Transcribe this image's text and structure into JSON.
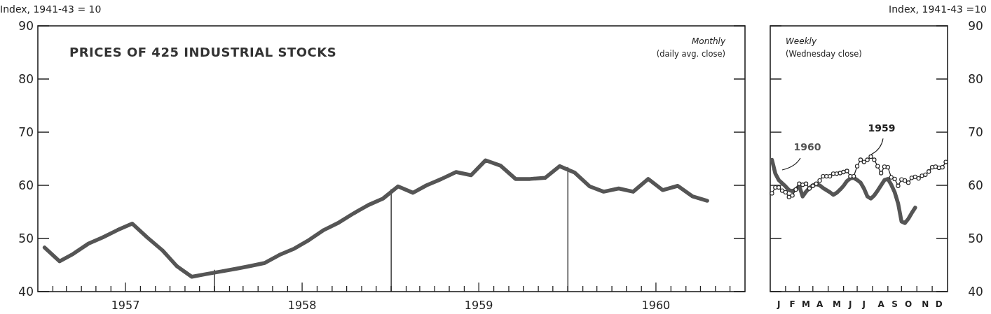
{
  "chart_data": [
    {
      "type": "line",
      "title": "PRICES OF 425 INDUSTRIAL STOCKS",
      "ylabel": "Index, 1941-43 = 10",
      "annotations": [
        "Monthly",
        "(daily avg. close)"
      ],
      "x": [
        "1957-01-15",
        "1957-02-15",
        "1957-03-15",
        "1957-04-15",
        "1957-05-15",
        "1957-06-15",
        "1957-07-15",
        "1957-08-15",
        "1957-09-15",
        "1957-10-15",
        "1957-11-15",
        "1957-12-15",
        "1958-01-15",
        "1958-02-15",
        "1958-03-15",
        "1958-04-15",
        "1958-05-15",
        "1958-06-15",
        "1958-07-15",
        "1958-08-15",
        "1958-09-15",
        "1958-10-15",
        "1958-11-15",
        "1958-12-15",
        "1959-01-15",
        "1959-02-15",
        "1959-03-15",
        "1959-04-15",
        "1959-05-15",
        "1959-06-15",
        "1959-07-15",
        "1959-08-15",
        "1959-09-15",
        "1959-10-15",
        "1959-11-15",
        "1959-12-15",
        "1960-01-15",
        "1960-02-15",
        "1960-03-15",
        "1960-04-15",
        "1960-05-15",
        "1960-06-15",
        "1960-07-15",
        "1960-08-15",
        "1960-09-15",
        "1960-10-15"
      ],
      "series": [
        {
          "color": "#555555",
          "values": [
            48.3,
            45.7,
            47.1,
            49.0,
            50.2,
            51.6,
            52.8,
            50.2,
            47.8,
            44.8,
            42.8,
            43.3,
            43.8,
            44.3,
            44.8,
            45.4,
            46.9,
            48.1,
            49.7,
            51.6,
            53.0,
            54.7,
            56.3,
            57.5,
            59.8,
            58.6,
            60.0,
            61.2,
            62.5,
            61.9,
            64.7,
            63.7,
            61.2,
            61.2,
            61.4,
            63.6,
            62.4,
            59.8,
            58.8,
            59.4,
            58.8,
            61.2,
            59.1,
            59.9,
            57.9,
            57.1
          ]
        }
      ],
      "xlim": [
        "1957-01-01",
        "1961-01-01"
      ],
      "xticks": [
        {
          "value": "1957-02-01",
          "label": null
        },
        {
          "value": "1957-03-01",
          "label": null
        },
        {
          "value": "1957-04-01",
          "label": null
        },
        {
          "value": "1957-05-01",
          "label": null
        },
        {
          "value": "1957-06-01",
          "label": null
        },
        {
          "value": "1957-07-01",
          "label": "1957"
        },
        {
          "value": "1957-08-01",
          "label": null
        },
        {
          "value": "1957-09-01",
          "label": null
        },
        {
          "value": "1957-10-01",
          "label": null
        },
        {
          "value": "1957-11-01",
          "label": null
        },
        {
          "value": "1957-12-01",
          "label": null
        },
        {
          "value": "1958-01-01",
          "label": null
        },
        {
          "value": "1958-02-01",
          "label": null
        },
        {
          "value": "1958-03-01",
          "label": null
        },
        {
          "value": "1958-04-01",
          "label": null
        },
        {
          "value": "1958-05-01",
          "label": null
        },
        {
          "value": "1958-06-01",
          "label": null
        },
        {
          "value": "1958-07-01",
          "label": "1958"
        },
        {
          "value": "1958-08-01",
          "label": null
        },
        {
          "value": "1958-09-01",
          "label": null
        },
        {
          "value": "1958-10-01",
          "label": null
        },
        {
          "value": "1958-11-01",
          "label": null
        },
        {
          "value": "1958-12-01",
          "label": null
        },
        {
          "value": "1959-01-01",
          "label": null
        },
        {
          "value": "1959-02-01",
          "label": null
        },
        {
          "value": "1959-03-01",
          "label": null
        },
        {
          "value": "1959-04-01",
          "label": null
        },
        {
          "value": "1959-05-01",
          "label": null
        },
        {
          "value": "1959-06-01",
          "label": null
        },
        {
          "value": "1959-07-01",
          "label": "1959"
        },
        {
          "value": "1959-08-01",
          "label": null
        },
        {
          "value": "1959-09-01",
          "label": null
        },
        {
          "value": "1959-10-01",
          "label": null
        },
        {
          "value": "1959-11-01",
          "label": null
        },
        {
          "value": "1959-12-01",
          "label": null
        },
        {
          "value": "1960-01-01",
          "label": null
        },
        {
          "value": "1960-02-01",
          "label": null
        },
        {
          "value": "1960-03-01",
          "label": null
        },
        {
          "value": "1960-04-01",
          "label": null
        },
        {
          "value": "1960-05-01",
          "label": null
        },
        {
          "value": "1960-06-01",
          "label": null
        },
        {
          "value": "1960-07-01",
          "label": "1960"
        },
        {
          "value": "1960-08-01",
          "label": null
        },
        {
          "value": "1960-09-01",
          "label": null
        },
        {
          "value": "1960-10-01",
          "label": null
        },
        {
          "value": "1960-11-01",
          "label": null
        },
        {
          "value": "1960-12-01",
          "label": null
        }
      ],
      "ylim": [
        40,
        90
      ],
      "yticks": [
        40,
        50,
        60,
        70,
        80,
        90
      ],
      "ref_lines": [
        {
          "axis": "x",
          "value": "1958-01-01",
          "color": "#222222"
        },
        {
          "axis": "x",
          "value": "1959-01-01",
          "color": "#222222"
        },
        {
          "axis": "x",
          "value": "1960-01-01",
          "color": "#222222"
        }
      ],
      "line_style": "solid",
      "marker": "none"
    },
    {
      "type": "line",
      "y2label": "Index, 1941-43 =10",
      "annotations": [
        "Weekly",
        "(Wednesday close)"
      ],
      "categories": [
        null,
        null,
        "J",
        null,
        null,
        null,
        "F",
        null,
        null,
        null,
        "M",
        null,
        null,
        null,
        "A",
        null,
        null,
        null,
        null,
        "M",
        null,
        null,
        null,
        "J",
        null,
        null,
        null,
        "J",
        null,
        null,
        null,
        null,
        "A",
        null,
        null,
        null,
        "S",
        null,
        null,
        null,
        "O",
        null,
        null,
        null,
        null,
        "N",
        null,
        null,
        null,
        "D",
        null,
        null
      ],
      "series": [
        {
          "name": "1960",
          "color": "#555555",
          "axis": "y2",
          "marker": "none",
          "values": [
            64.8,
            62.2,
            61.0,
            60.4,
            59.8,
            59.1,
            58.9,
            59.2,
            59.9,
            57.9,
            58.8,
            59.5,
            60.0,
            60.2,
            60.0,
            59.5,
            59.1,
            58.7,
            58.2,
            58.6,
            59.2,
            59.9,
            60.8,
            61.3,
            61.4,
            61.0,
            60.5,
            59.4,
            57.9,
            57.5,
            58.1,
            59.0,
            60.0,
            61.0,
            61.2,
            60.1,
            58.7,
            56.6,
            53.2,
            52.9,
            53.7,
            54.8,
            55.8,
            null,
            null,
            null,
            null,
            null,
            null,
            null,
            null,
            null
          ]
        },
        {
          "name": "1959",
          "color": "#222222",
          "axis": "y2",
          "marker": "circle",
          "values": [
            58.5,
            59.6,
            59.6,
            59.0,
            58.7,
            57.8,
            58.1,
            59.2,
            60.3,
            60.1,
            60.3,
            59.4,
            59.9,
            60.3,
            60.9,
            61.7,
            61.7,
            61.7,
            62.2,
            62.2,
            62.3,
            62.5,
            62.7,
            61.7,
            61.7,
            63.6,
            64.8,
            64.4,
            64.8,
            65.4,
            64.8,
            63.6,
            62.3,
            63.5,
            63.4,
            61.5,
            61.2,
            59.9,
            61.1,
            60.9,
            60.5,
            61.4,
            61.6,
            61.3,
            61.8,
            62.0,
            62.6,
            63.4,
            63.5,
            63.3,
            63.4,
            64.4
          ]
        }
      ],
      "y2lim": [
        40,
        90
      ],
      "y2ticks": [
        40,
        50,
        60,
        70,
        80,
        90
      ],
      "line_style": "solid"
    }
  ]
}
